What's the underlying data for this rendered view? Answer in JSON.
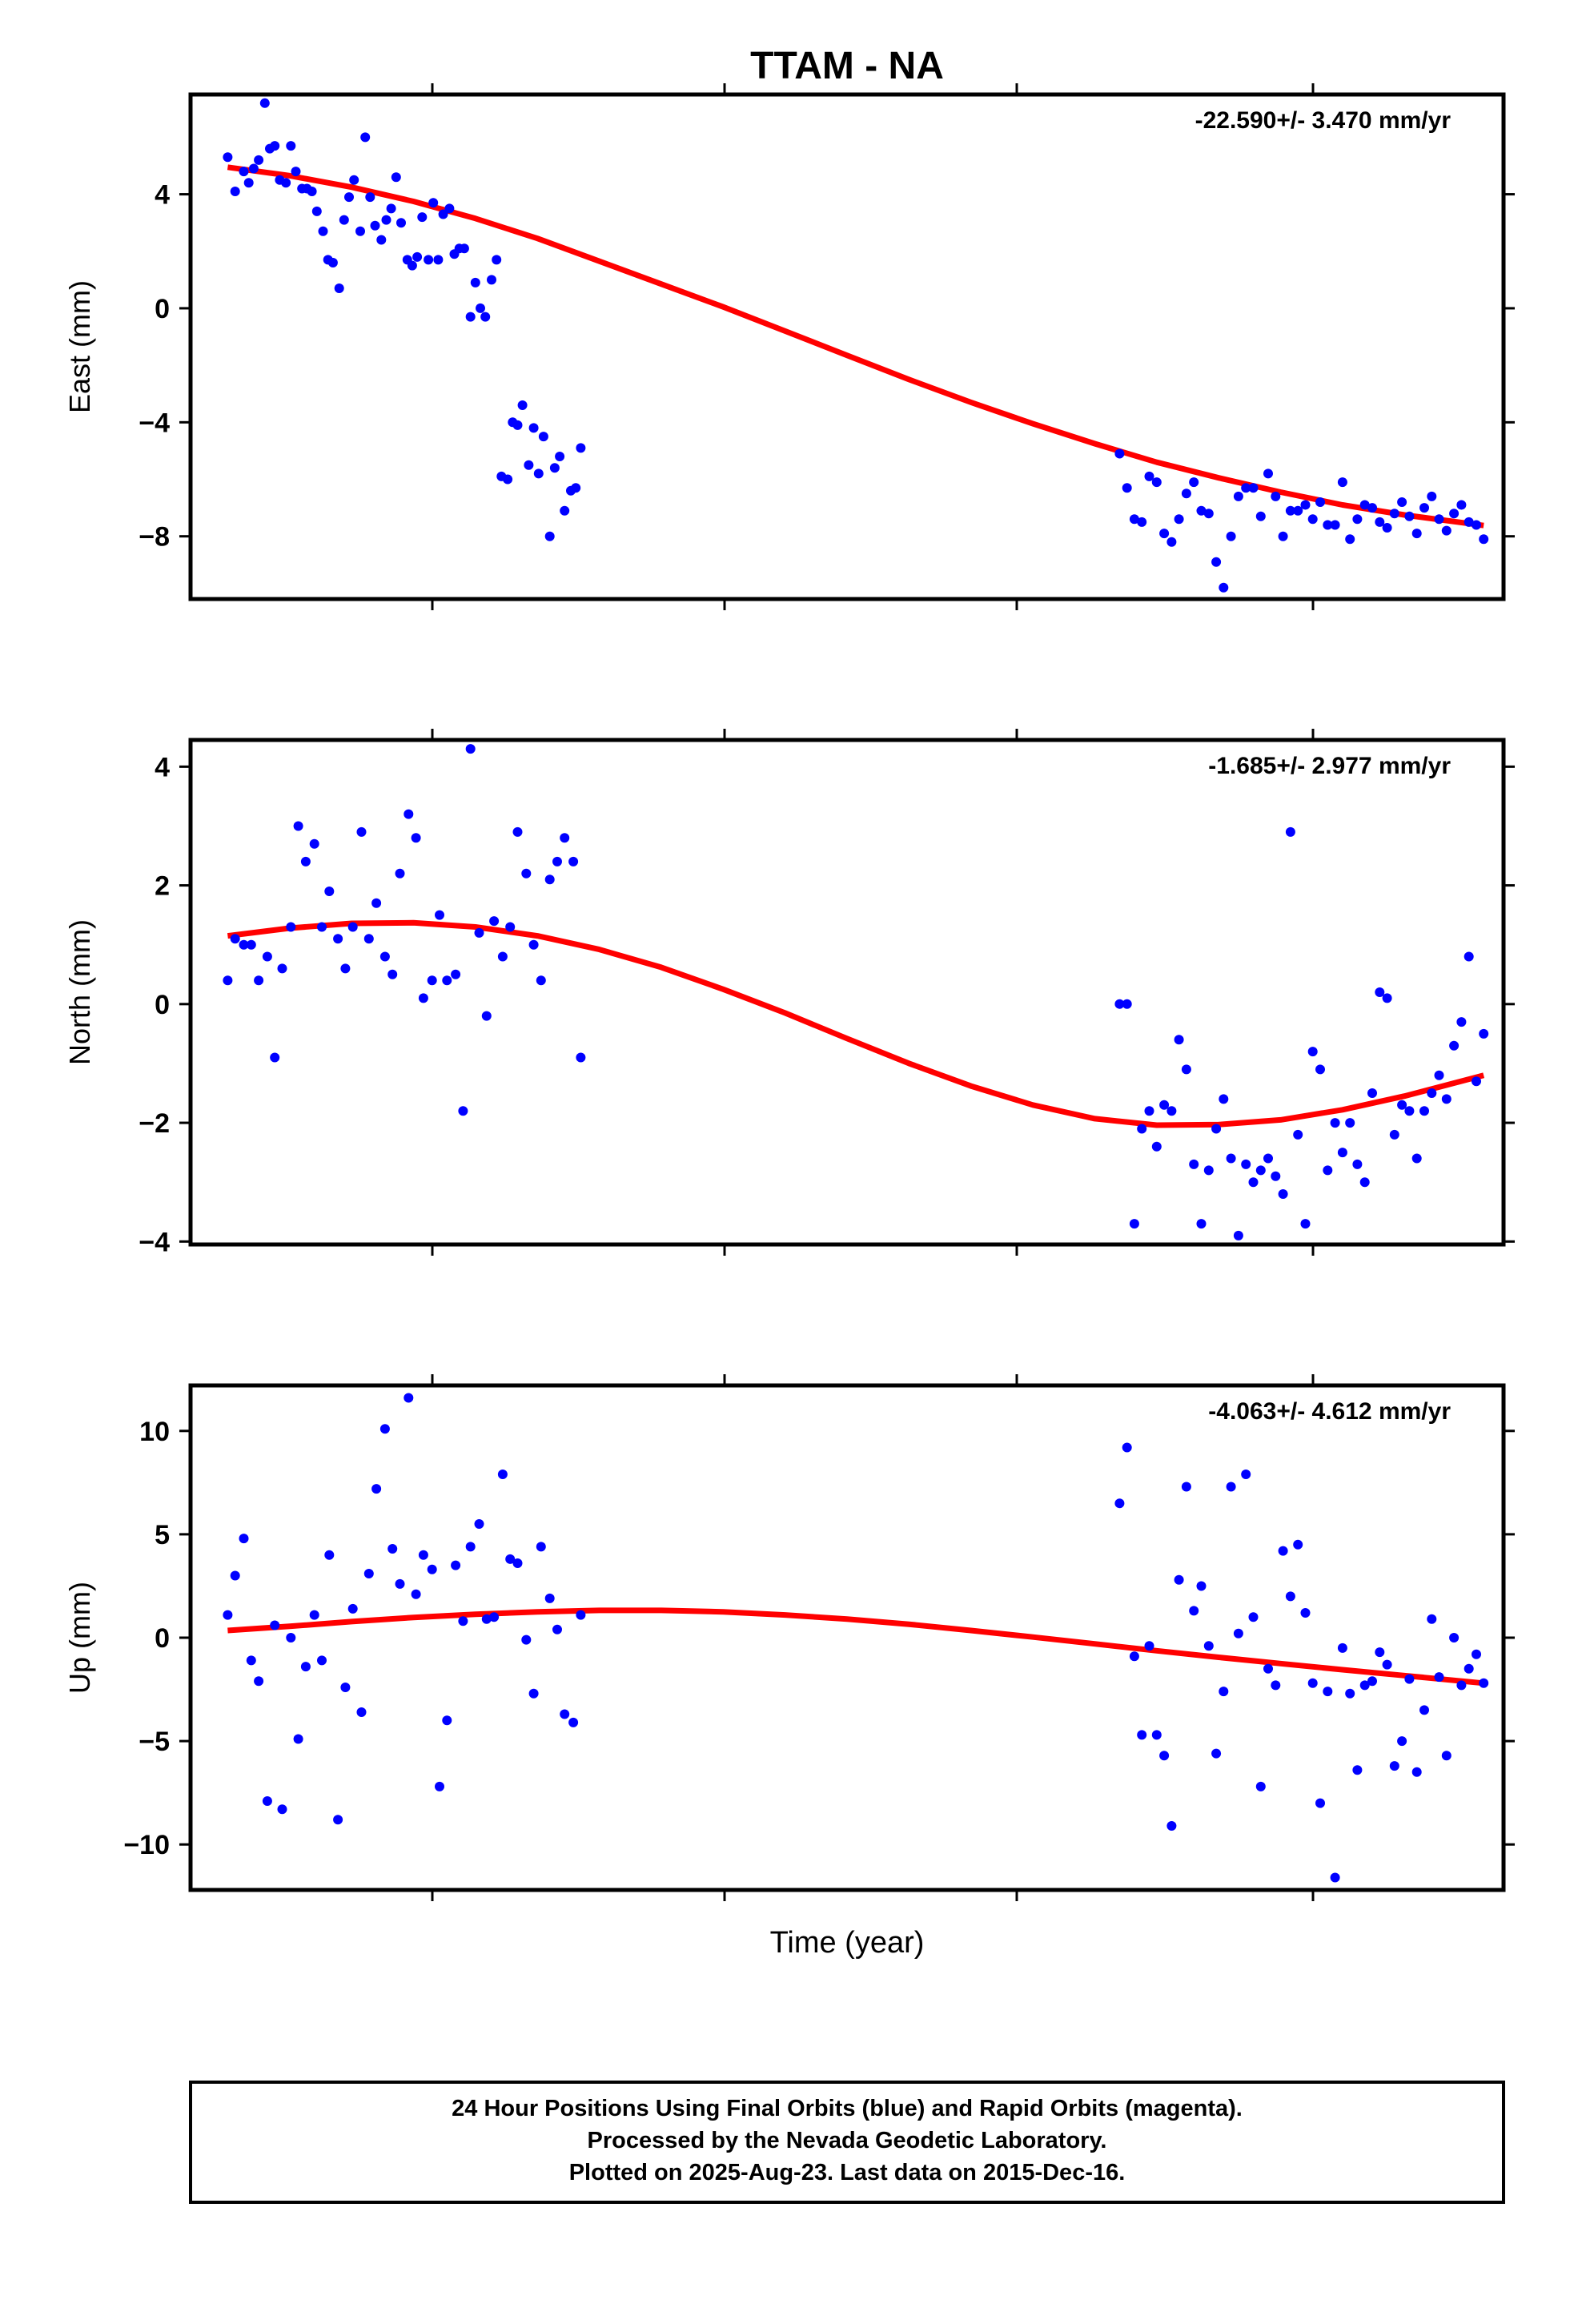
{
  "title": "TTAM - NA",
  "xlabel": "Time (year)",
  "footer": [
    "24 Hour Positions Using Final Orbits (blue) and Rapid Orbits (magenta).",
    "Processed by the Nevada Geodetic Laboratory.",
    "Plotted on 2025-Aug-23. Last data on 2015-Dec-16."
  ],
  "colors": {
    "points": "#0000ff",
    "fit": "#ff0000",
    "frame": "#000000"
  },
  "chart_data": [
    {
      "type": "scatter",
      "ylabel": "East (mm)",
      "rate_text": "-22.590+/- 3.470 mm/yr",
      "yticks": [
        4,
        0,
        -4,
        -8
      ],
      "ylim": [
        -10.2,
        7.5
      ],
      "x": [
        0.0,
        0.06,
        0.13,
        0.17,
        0.21,
        0.25,
        0.3,
        0.34,
        0.38,
        0.42,
        0.47,
        0.51,
        0.55,
        0.6,
        0.64,
        0.68,
        0.72,
        0.77,
        0.81,
        0.85,
        0.9,
        0.94,
        0.98,
        1.02,
        1.07,
        1.11,
        1.15,
        1.19,
        1.24,
        1.28,
        1.32,
        1.36,
        1.4,
        1.45,
        1.49,
        1.53,
        1.57,
        1.62,
        1.66,
        1.7,
        1.74,
        1.79,
        1.83,
        1.87,
        1.91,
        1.96,
        2.0,
        2.04,
        2.08,
        2.13,
        2.17,
        2.21,
        2.26,
        2.3,
        2.34,
        2.38,
        2.43,
        2.47,
        2.51,
        2.55,
        2.6,
        2.64,
        2.68,
        2.72,
        2.77,
        2.81,
        2.85,
        7.2,
        7.26,
        7.32,
        7.38,
        7.44,
        7.5,
        7.56,
        7.62,
        7.68,
        7.74,
        7.8,
        7.86,
        7.92,
        7.98,
        8.04,
        8.1,
        8.16,
        8.22,
        8.28,
        8.34,
        8.4,
        8.46,
        8.52,
        8.58,
        8.64,
        8.7,
        8.76,
        8.82,
        8.88,
        8.94,
        9.0,
        9.06,
        9.12,
        9.18,
        9.24,
        9.3,
        9.36,
        9.42,
        9.48,
        9.54,
        9.6,
        9.66,
        9.72,
        9.78,
        9.84,
        9.9,
        9.96,
        10.02,
        10.08,
        10.14
      ],
      "values": [
        5.3,
        4.1,
        4.8,
        4.4,
        4.9,
        5.2,
        7.2,
        5.6,
        5.7,
        4.5,
        4.4,
        5.7,
        4.8,
        4.2,
        4.2,
        4.1,
        3.4,
        2.7,
        1.7,
        1.6,
        0.7,
        3.1,
        3.9,
        4.5,
        2.7,
        6.0,
        3.9,
        2.9,
        2.4,
        3.1,
        3.5,
        4.6,
        3.0,
        1.7,
        1.5,
        1.8,
        3.2,
        1.7,
        3.7,
        1.7,
        3.3,
        3.5,
        1.9,
        2.1,
        2.1,
        -0.3,
        0.9,
        0.0,
        -0.3,
        1.0,
        1.7,
        -5.9,
        -6.0,
        -4.0,
        -4.1,
        -3.4,
        -5.5,
        -4.2,
        -5.8,
        -4.5,
        -8.0,
        -5.6,
        -5.2,
        -7.1,
        -6.4,
        -6.3,
        -4.9,
        -5.1,
        -6.3,
        -7.4,
        -7.5,
        -5.9,
        -6.1,
        -7.9,
        -8.2,
        -7.4,
        -6.5,
        -6.1,
        -7.1,
        -7.2,
        -8.9,
        -9.8,
        -8.0,
        -6.6,
        -6.3,
        -6.3,
        -7.3,
        -5.8,
        -6.6,
        -8.0,
        -7.1,
        -7.1,
        -6.9,
        -7.4,
        -6.8,
        -7.6,
        -7.6,
        -6.1,
        -8.1,
        -7.4,
        -6.9,
        -7.0,
        -7.5,
        -7.7,
        -7.2,
        -6.8,
        -7.3,
        -7.9,
        -7.0,
        -6.6,
        -7.4,
        -7.8,
        -7.2,
        -6.9,
        -7.5,
        -7.6,
        -8.1
      ],
      "fit_x": [
        0,
        0.5,
        1,
        1.5,
        2,
        2.5,
        3,
        3.5,
        4,
        4.5,
        5,
        5.5,
        6,
        6.5,
        7,
        7.5,
        8,
        8.5,
        9,
        9.5,
        10.14
      ],
      "fit_y": [
        4.95,
        4.65,
        4.25,
        3.75,
        3.15,
        2.45,
        1.65,
        0.85,
        0.05,
        -0.8,
        -1.65,
        -2.5,
        -3.3,
        -4.05,
        -4.75,
        -5.4,
        -5.95,
        -6.45,
        -6.9,
        -7.25,
        -7.62
      ]
    },
    {
      "type": "scatter",
      "ylabel": "North (mm)",
      "rate_text": "-1.685+/- 2.977 mm/yr",
      "yticks": [
        4,
        2,
        0,
        -2,
        -4
      ],
      "ylim": [
        -4.05,
        4.45
      ],
      "x": [
        0.0,
        0.06,
        0.13,
        0.19,
        0.25,
        0.32,
        0.38,
        0.44,
        0.51,
        0.57,
        0.63,
        0.7,
        0.76,
        0.82,
        0.89,
        0.95,
        1.01,
        1.08,
        1.14,
        1.2,
        1.27,
        1.33,
        1.39,
        1.46,
        1.52,
        1.58,
        1.65,
        1.71,
        1.77,
        1.84,
        1.9,
        1.96,
        2.03,
        2.09,
        2.15,
        2.22,
        2.28,
        2.34,
        2.41,
        2.47,
        2.53,
        2.6,
        2.66,
        2.72,
        2.79,
        2.85,
        7.2,
        7.26,
        7.32,
        7.38,
        7.44,
        7.5,
        7.56,
        7.62,
        7.68,
        7.74,
        7.8,
        7.86,
        7.92,
        7.98,
        8.04,
        8.1,
        8.16,
        8.22,
        8.28,
        8.34,
        8.4,
        8.46,
        8.52,
        8.58,
        8.64,
        8.7,
        8.76,
        8.82,
        8.88,
        8.94,
        9.0,
        9.06,
        9.12,
        9.18,
        9.24,
        9.3,
        9.36,
        9.42,
        9.48,
        9.54,
        9.6,
        9.66,
        9.72,
        9.78,
        9.84,
        9.9,
        9.96,
        10.02,
        10.08,
        10.14
      ],
      "values": [
        0.4,
        1.1,
        1.0,
        1.0,
        0.4,
        0.8,
        -0.9,
        0.6,
        1.3,
        3.0,
        2.4,
        2.7,
        1.3,
        1.9,
        1.1,
        0.6,
        1.3,
        2.9,
        1.1,
        1.7,
        0.8,
        0.5,
        2.2,
        3.2,
        2.8,
        0.1,
        0.4,
        1.5,
        0.4,
        0.5,
        -1.8,
        4.3,
        1.2,
        -0.2,
        1.4,
        0.8,
        1.3,
        2.9,
        2.2,
        1.0,
        0.4,
        2.1,
        2.4,
        2.8,
        2.4,
        -0.9,
        0.0,
        0.0,
        -3.7,
        -2.1,
        -1.8,
        -2.4,
        -1.7,
        -1.8,
        -0.6,
        -1.1,
        -2.7,
        -3.7,
        -2.8,
        -2.1,
        -1.6,
        -2.6,
        -3.9,
        -2.7,
        -3.0,
        -2.8,
        -2.6,
        -2.9,
        -3.2,
        2.9,
        -2.2,
        -3.7,
        -0.8,
        -1.1,
        -2.8,
        -2.0,
        -2.5,
        -2.0,
        -2.7,
        -3.0,
        -1.5,
        0.2,
        0.1,
        -2.2,
        -1.7,
        -1.8,
        -2.6,
        -1.8,
        -1.5,
        -1.2,
        -1.6,
        -0.7,
        -0.3,
        0.8,
        -1.3,
        -0.5
      ],
      "fit_x": [
        0,
        0.5,
        1,
        1.5,
        2,
        2.5,
        3,
        3.5,
        4,
        4.5,
        5,
        5.5,
        6,
        6.5,
        7,
        7.5,
        8,
        8.5,
        9,
        9.5,
        10.14
      ],
      "fit_y": [
        1.15,
        1.28,
        1.36,
        1.37,
        1.3,
        1.15,
        0.92,
        0.62,
        0.25,
        -0.15,
        -0.58,
        -1.0,
        -1.38,
        -1.7,
        -1.93,
        -2.04,
        -2.03,
        -1.95,
        -1.78,
        -1.55,
        -1.2
      ]
    },
    {
      "type": "scatter",
      "ylabel": "Up (mm)",
      "rate_text": "-4.063+/- 4.612 mm/yr",
      "yticks": [
        10,
        5,
        0,
        -5,
        -10
      ],
      "ylim": [
        -12.2,
        12.2
      ],
      "x": [
        0.0,
        0.06,
        0.13,
        0.19,
        0.25,
        0.32,
        0.38,
        0.44,
        0.51,
        0.57,
        0.63,
        0.7,
        0.76,
        0.82,
        0.89,
        0.95,
        1.01,
        1.08,
        1.14,
        1.2,
        1.27,
        1.33,
        1.39,
        1.46,
        1.52,
        1.58,
        1.65,
        1.71,
        1.77,
        1.84,
        1.9,
        1.96,
        2.03,
        2.09,
        2.15,
        2.22,
        2.28,
        2.34,
        2.41,
        2.47,
        2.53,
        2.6,
        2.66,
        2.72,
        2.79,
        2.85,
        7.2,
        7.26,
        7.32,
        7.38,
        7.44,
        7.5,
        7.56,
        7.62,
        7.68,
        7.74,
        7.8,
        7.86,
        7.92,
        7.98,
        8.04,
        8.1,
        8.16,
        8.22,
        8.28,
        8.34,
        8.4,
        8.46,
        8.52,
        8.58,
        8.64,
        8.7,
        8.76,
        8.82,
        8.88,
        8.94,
        9.0,
        9.06,
        9.12,
        9.18,
        9.24,
        9.3,
        9.36,
        9.42,
        9.48,
        9.54,
        9.6,
        9.66,
        9.72,
        9.78,
        9.84,
        9.9,
        9.96,
        10.02,
        10.08,
        10.14
      ],
      "values": [
        1.1,
        3.0,
        4.8,
        -1.1,
        -2.1,
        -7.9,
        0.6,
        -8.3,
        0.0,
        -4.9,
        -1.4,
        1.1,
        -1.1,
        4.0,
        -8.8,
        -2.4,
        1.4,
        -3.6,
        3.1,
        7.2,
        10.1,
        4.3,
        2.6,
        11.6,
        2.1,
        4.0,
        3.3,
        -7.2,
        -4.0,
        3.5,
        0.8,
        4.4,
        5.5,
        0.9,
        1.0,
        7.9,
        3.8,
        3.6,
        -0.1,
        -2.7,
        4.4,
        1.9,
        0.4,
        -3.7,
        -4.1,
        1.1,
        6.5,
        9.2,
        -0.9,
        -4.7,
        -0.4,
        -4.7,
        -5.7,
        -9.1,
        2.8,
        7.3,
        1.3,
        2.5,
        -0.4,
        -5.6,
        -2.6,
        7.3,
        0.2,
        7.9,
        1.0,
        -7.2,
        -1.5,
        -2.3,
        4.2,
        2.0,
        4.5,
        1.2,
        -2.2,
        -8.0,
        -2.6,
        -11.6,
        -0.5,
        -2.7,
        -6.4,
        -2.3,
        -2.1,
        -0.7,
        -1.3,
        -6.2,
        -5.0,
        -2.0,
        -6.5,
        -3.5,
        0.9,
        -1.9,
        -5.7,
        0.0,
        -2.3,
        -1.5,
        -0.8,
        -2.2
      ],
      "fit_x": [
        0,
        0.5,
        1,
        1.5,
        2,
        2.5,
        3,
        3.5,
        4,
        4.5,
        5,
        5.5,
        6,
        6.5,
        7,
        7.5,
        8,
        8.5,
        9,
        9.5,
        10.14
      ],
      "fit_y": [
        0.35,
        0.55,
        0.78,
        0.98,
        1.13,
        1.25,
        1.32,
        1.32,
        1.25,
        1.1,
        0.9,
        0.65,
        0.35,
        0.03,
        -0.3,
        -0.63,
        -0.95,
        -1.25,
        -1.55,
        -1.83,
        -2.2
      ]
    }
  ]
}
